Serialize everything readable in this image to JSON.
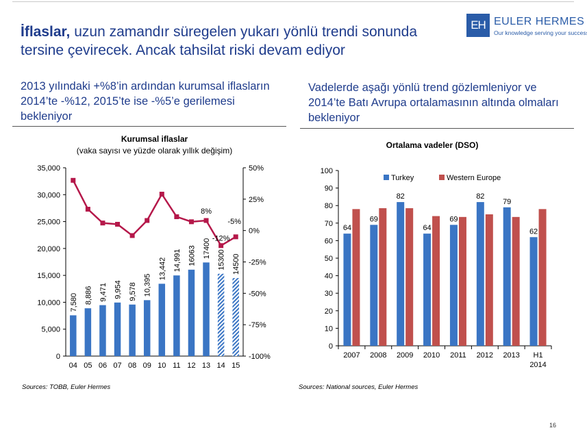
{
  "header": {
    "title_bold": "İflaslar,",
    "title_rest": " uzun zamandır süregelen yukarı yönlü trendi sonunda tersine çevirecek. Ancak tahsilat riski devam ediyor",
    "logo_mark": "EH",
    "logo_name": "EULER HERMES",
    "logo_tagline": "Our knowledge serving your success"
  },
  "left_panel": {
    "subtitle": "2013 yılındaki +%8’in ardından kurumsal iflasların 2014’te -%12, 2015’te ise -%5’e gerilemesi bekleniyor",
    "source": "Sources: TOBB, Euler Hermes"
  },
  "right_panel": {
    "subtitle": "Vadelerde aşağı yönlü trend gözlemleniyor ve 2014’te Batı Avrupa ortalamasının altında olmaları bekleniyor",
    "source": "Sources: National sources, Euler Hermes"
  },
  "page_number": "16",
  "colors": {
    "title": "#1f3c8c",
    "bar_blue": "#3a75c4",
    "bar_red": "#c0504d",
    "line": "#b5184a"
  },
  "chart_data": [
    {
      "type": "bar",
      "title": "Kurumsal iflaslar",
      "subtitle": "(vaka sayısı ve yüzde olarak yıllık değişim)",
      "categories": [
        "04",
        "05",
        "06",
        "07",
        "08",
        "09",
        "10",
        "11",
        "12",
        "13",
        "14",
        "15"
      ],
      "series": [
        {
          "values": [
            7580,
            8886,
            9471,
            9954,
            9578,
            10395,
            13442,
            14991,
            16063,
            17400,
            15300,
            14500
          ],
          "labels": [
            "7,580",
            "8,886",
            "9,471",
            "9,954",
            "9,578",
            "10,395",
            "13,442",
            "14,991",
            "16063",
            "17400",
            "15300",
            "14500"
          ],
          "forecast_from_index": 10
        }
      ],
      "line": {
        "axis": "right",
        "values": [
          40,
          17,
          6,
          5,
          -4,
          8,
          29,
          11,
          7,
          8,
          -12,
          -5
        ],
        "labels": {
          "9": "8%",
          "10": "-12%",
          "11": "-5%"
        }
      },
      "ylim": [
        0,
        35000
      ],
      "yticks": [
        "0",
        "5,000",
        "10,000",
        "15,000",
        "20,000",
        "25,000",
        "30,000",
        "35,000"
      ],
      "y2lim": [
        -100,
        50
      ],
      "y2ticks": [
        "-100%",
        "-75%",
        "-50%",
        "-25%",
        "0%",
        "25%",
        "50%"
      ]
    },
    {
      "type": "bar",
      "title": "Ortalama vadeler (DSO)",
      "categories": [
        "2007",
        "2008",
        "2009",
        "2010",
        "2011",
        "2012",
        "2013",
        "H1 2014"
      ],
      "series": [
        {
          "name": "Turkey",
          "values": [
            64,
            69,
            82,
            64,
            69,
            82,
            79,
            62
          ],
          "labels": [
            "64",
            "69",
            "82",
            "64",
            "69",
            "82",
            "79",
            "62"
          ]
        },
        {
          "name": "Western Europe",
          "values": [
            78,
            78.5,
            78.5,
            74,
            73.5,
            75,
            73.5,
            78
          ]
        }
      ],
      "ylim": [
        0,
        100
      ],
      "yticks": [
        "0",
        "10",
        "20",
        "30",
        "40",
        "50",
        "60",
        "70",
        "80",
        "90",
        "100"
      ],
      "legend": "top"
    }
  ]
}
